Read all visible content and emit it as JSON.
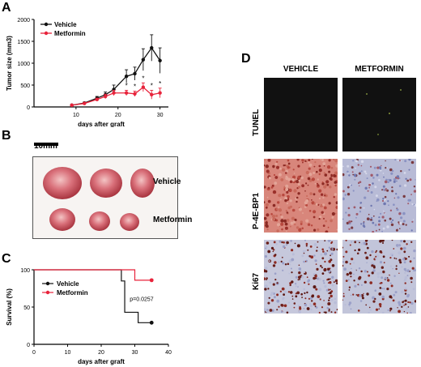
{
  "panels": {
    "a": "A",
    "b": "B",
    "c": "C",
    "d": "D"
  },
  "chart_data": [
    {
      "type": "line",
      "panel": "A",
      "title": "",
      "xlabel": "days after graft",
      "ylabel": "Tumor size (mm3)",
      "xlim": [
        0,
        32
      ],
      "ylim": [
        0,
        2000
      ],
      "xticks": [
        10,
        20,
        30
      ],
      "yticks": [
        0,
        500,
        1000,
        1500,
        2000
      ],
      "legend_position": "top-left",
      "series": [
        {
          "name": "Vehicle",
          "color": "#111111",
          "x": [
            9,
            12,
            15,
            17,
            19,
            22,
            24,
            26,
            28,
            30
          ],
          "y": [
            40,
            90,
            200,
            280,
            400,
            700,
            760,
            1080,
            1350,
            1060
          ],
          "err": [
            10,
            20,
            40,
            60,
            100,
            150,
            150,
            250,
            300,
            290
          ]
        },
        {
          "name": "Metformin",
          "color": "#e8233b",
          "x": [
            9,
            12,
            15,
            17,
            19,
            22,
            24,
            26,
            28,
            30
          ],
          "y": [
            40,
            80,
            170,
            240,
            320,
            320,
            300,
            450,
            280,
            320
          ],
          "err": [
            10,
            20,
            30,
            50,
            60,
            60,
            60,
            100,
            100,
            110
          ]
        }
      ],
      "annotations": [
        "*",
        "*",
        "*",
        "*",
        "*"
      ]
    },
    {
      "type": "line",
      "panel": "C",
      "title": "",
      "xlabel": "days after graft",
      "ylabel": "Survival (%)",
      "xlim": [
        0,
        40
      ],
      "ylim": [
        0,
        100
      ],
      "xticks": [
        0,
        10,
        20,
        30,
        40
      ],
      "yticks": [
        0,
        50,
        100
      ],
      "legend_position": "center",
      "annotation": "p=0.0257",
      "series": [
        {
          "name": "Vehicle",
          "color": "#111111",
          "steps": [
            [
              0,
              100
            ],
            [
              26,
              100
            ],
            [
              26,
              85
            ],
            [
              27,
              85
            ],
            [
              27,
              43
            ],
            [
              31,
              43
            ],
            [
              31,
              29
            ],
            [
              35,
              29
            ]
          ]
        },
        {
          "name": "Metformin",
          "color": "#e8233b",
          "steps": [
            [
              0,
              100
            ],
            [
              30,
              100
            ],
            [
              30,
              86
            ],
            [
              35,
              86
            ]
          ]
        }
      ]
    }
  ],
  "panel_b": {
    "scale_bar": "10mm",
    "labels": [
      "Vehicle",
      "Metformin"
    ]
  },
  "panel_d": {
    "columns": [
      "VEHICLE",
      "METFORMIN"
    ],
    "rows": [
      "TUNEL",
      "P-4E-BP1",
      "Ki67"
    ]
  }
}
